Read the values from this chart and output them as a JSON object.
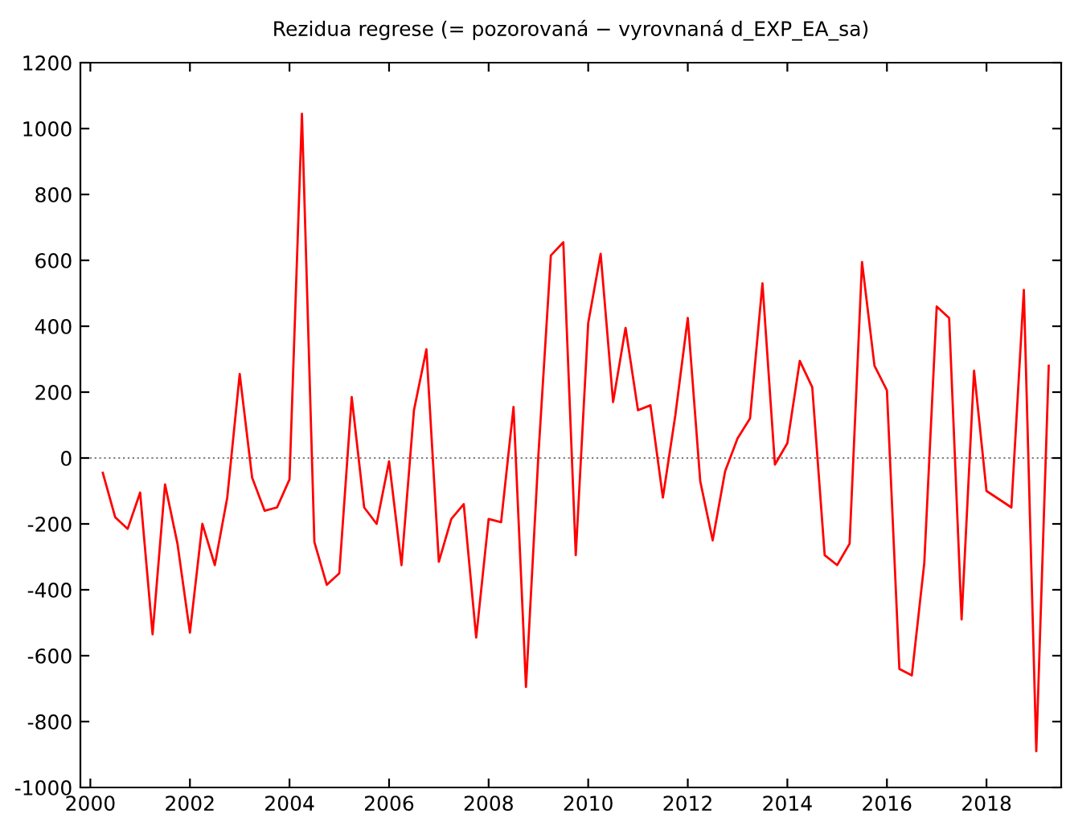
{
  "chart_data": {
    "type": "line",
    "title": "Rezidua regrese (= pozorovaná − vyrovnaná d_EXP_EA_sa)",
    "x": [
      2000.25,
      2000.5,
      2000.75,
      2001,
      2001.25,
      2001.5,
      2001.75,
      2002,
      2002.25,
      2002.5,
      2002.75,
      2003,
      2003.25,
      2003.5,
      2003.75,
      2004,
      2004.25,
      2004.5,
      2004.75,
      2005,
      2005.25,
      2005.5,
      2005.75,
      2006,
      2006.25,
      2006.5,
      2006.75,
      2007,
      2007.25,
      2007.5,
      2007.75,
      2008,
      2008.25,
      2008.5,
      2008.75,
      2009,
      2009.25,
      2009.5,
      2009.75,
      2010,
      2010.25,
      2010.5,
      2010.75,
      2011,
      2011.25,
      2011.5,
      2011.75,
      2012,
      2012.25,
      2012.5,
      2012.75,
      2013,
      2013.25,
      2013.5,
      2013.75,
      2014,
      2014.25,
      2014.5,
      2014.75,
      2015,
      2015.25,
      2015.5,
      2015.75,
      2016,
      2016.25,
      2016.5,
      2016.75,
      2017,
      2017.25,
      2017.5,
      2017.75,
      2018,
      2018.25,
      2018.5,
      2018.75,
      2019,
      2019.25
    ],
    "series": [
      {
        "color": "#ff0000",
        "values": [
          -45,
          -180,
          -215,
          -105,
          -535,
          -80,
          -260,
          -530,
          -200,
          -325,
          -120,
          255,
          -60,
          -160,
          -150,
          -65,
          1045,
          -255,
          -385,
          -350,
          185,
          -150,
          -200,
          -10,
          -325,
          145,
          330,
          -315,
          -185,
          -140,
          -545,
          -185,
          -195,
          155,
          -695,
          10,
          615,
          655,
          -295,
          410,
          620,
          170,
          395,
          145,
          160,
          -120,
          130,
          425,
          -70,
          -250,
          -40,
          60,
          120,
          530,
          -20,
          45,
          295,
          215,
          -295,
          -325,
          -260,
          595,
          280,
          205,
          -640,
          -660,
          -320,
          460,
          425,
          -490,
          265,
          -100,
          -125,
          -150,
          510,
          -890,
          280
        ]
      }
    ],
    "xlim": [
      1999.8,
      2019.5
    ],
    "xticks": [
      2000,
      2002,
      2004,
      2006,
      2008,
      2010,
      2012,
      2014,
      2016,
      2018
    ],
    "ylim": [
      -1000,
      1200
    ],
    "yticks": [
      -1000,
      -800,
      -600,
      -400,
      -200,
      0,
      200,
      400,
      600,
      800,
      1000,
      1200
    ],
    "ref_lines": [
      {
        "axis": "y",
        "value": 0,
        "color": "#808080",
        "line_style": "dotted"
      }
    ],
    "grid": false,
    "legend": false,
    "line_style": "solid",
    "marker": "none"
  }
}
